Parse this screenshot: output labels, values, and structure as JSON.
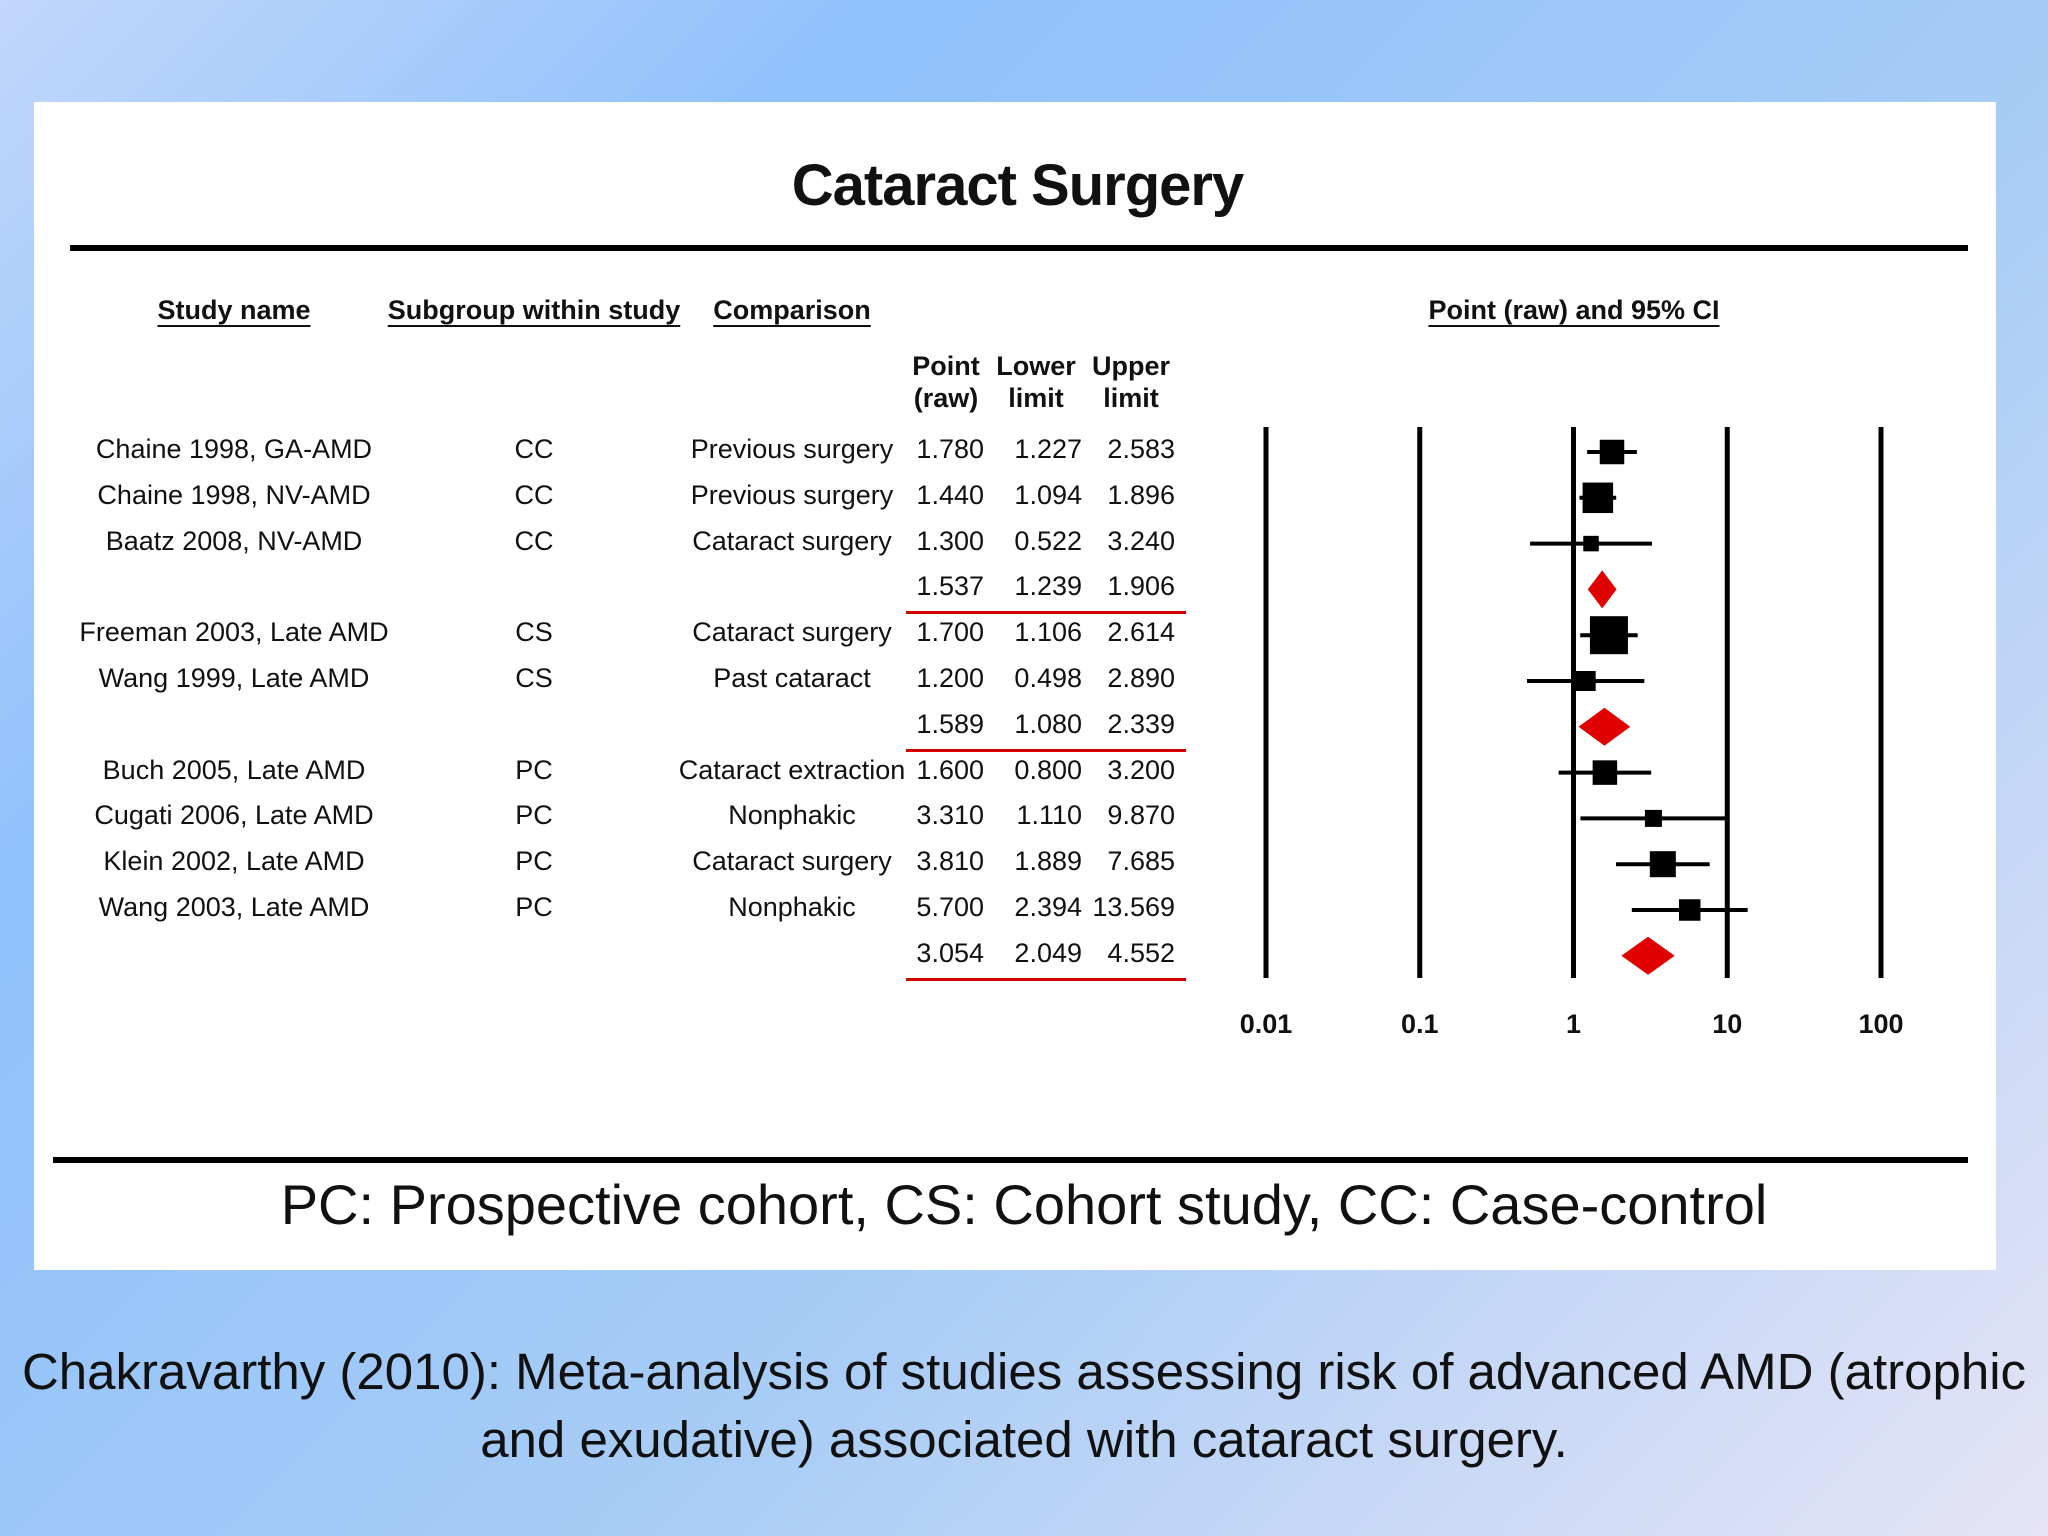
{
  "chart_data": {
    "type": "forest",
    "title": "Cataract Surgery",
    "headers": {
      "study_name": "Study name",
      "subgroup": "Subgroup within study",
      "comparison": "Comparison",
      "plot": "Point (raw) and 95% CI",
      "point": "Point",
      "point2": "(raw)",
      "lower": "Lower",
      "lower2": "limit",
      "upper": "Upper",
      "upper2": "limit"
    },
    "x_scale": "log",
    "x_ticks": [
      "0.01",
      "0.1",
      "1",
      "10",
      "100"
    ],
    "xlim": [
      0.01,
      100
    ],
    "rows": [
      {
        "kind": "study",
        "study": "Chaine 1998, GA-AMD",
        "subgroup": "CC",
        "comparison": "Previous surgery",
        "point": "1.780",
        "lower": "1.227",
        "upper": "2.583",
        "weight": 0.55
      },
      {
        "kind": "study",
        "study": "Chaine 1998, NV-AMD",
        "subgroup": "CC",
        "comparison": "Previous surgery",
        "point": "1.440",
        "lower": "1.094",
        "upper": "1.896",
        "weight": 0.75
      },
      {
        "kind": "study",
        "study": "Baatz 2008, NV-AMD",
        "subgroup": "CC",
        "comparison": "Cataract surgery",
        "point": "1.300",
        "lower": "0.522",
        "upper": "3.240",
        "weight": 0.25
      },
      {
        "kind": "summary",
        "point": "1.537",
        "lower": "1.239",
        "upper": "1.906"
      },
      {
        "kind": "study",
        "study": "Freeman 2003, Late AMD",
        "subgroup": "CS",
        "comparison": "Cataract surgery",
        "point": "1.700",
        "lower": "1.106",
        "upper": "2.614",
        "weight": 1.0
      },
      {
        "kind": "study",
        "study": "Wang 1999, Late AMD",
        "subgroup": "CS",
        "comparison": "Past cataract",
        "point": "1.200",
        "lower": "0.498",
        "upper": "2.890",
        "weight": 0.4
      },
      {
        "kind": "summary",
        "point": "1.589",
        "lower": "1.080",
        "upper": "2.339"
      },
      {
        "kind": "study",
        "study": "Buch 2005, Late AMD",
        "subgroup": "PC",
        "comparison": "Cataract extraction",
        "point": "1.600",
        "lower": "0.800",
        "upper": "3.200",
        "weight": 0.55
      },
      {
        "kind": "study",
        "study": "Cugati 2006, Late AMD",
        "subgroup": "PC",
        "comparison": "Nonphakic",
        "point": "3.310",
        "lower": "1.110",
        "upper": "9.870",
        "weight": 0.3
      },
      {
        "kind": "study",
        "study": "Klein 2002, Late AMD",
        "subgroup": "PC",
        "comparison": "Cataract surgery",
        "point": "3.810",
        "lower": "1.889",
        "upper": "7.685",
        "weight": 0.6
      },
      {
        "kind": "study",
        "study": "Wang 2003, Late AMD",
        "subgroup": "PC",
        "comparison": "Nonphakic",
        "point": "5.700",
        "lower": "2.394",
        "upper": "13.569",
        "weight": 0.45
      },
      {
        "kind": "summary",
        "point": "3.054",
        "lower": "2.049",
        "upper": "4.552"
      }
    ],
    "colors": {
      "study_marker": "#000000",
      "summary_marker": "#e00000",
      "summary_rule": "#d40000"
    }
  },
  "footnote": "PC: Prospective cohort, CS: Cohort study, CC: Case-control",
  "caption": "Chakravarthy (2010): Meta-analysis of studies assessing risk of advanced AMD (atrophic and exudative) associated with cataract surgery."
}
